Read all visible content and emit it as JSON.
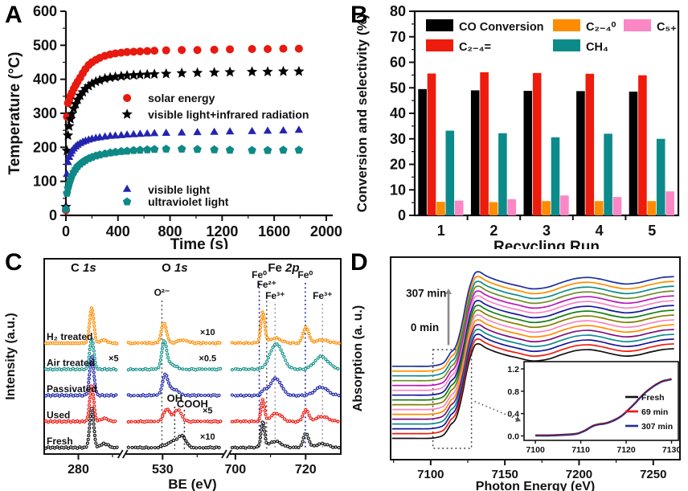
{
  "figure": {
    "background": "#ffffff",
    "panel_labels": [
      "A",
      "B",
      "C",
      "D"
    ]
  },
  "chart_data": [
    {
      "panel": "A",
      "type": "scatter",
      "xlabel": "Time (s)",
      "ylabel": "Temperature (°C)",
      "xlim": [
        0,
        2050
      ],
      "ylim": [
        0,
        600
      ],
      "xticks": [
        0,
        400,
        800,
        1200,
        1600,
        2000
      ],
      "xminor": 200,
      "yticks": [
        0,
        100,
        200,
        300,
        400,
        500,
        600
      ],
      "yminor": 50,
      "x": [
        0,
        8,
        16,
        25,
        35,
        45,
        60,
        75,
        90,
        110,
        130,
        150,
        175,
        200,
        230,
        260,
        300,
        340,
        380,
        425,
        470,
        520,
        570,
        625,
        680,
        770,
        890,
        1010,
        1140,
        1260,
        1430,
        1550,
        1670,
        1790
      ],
      "series": [
        {
          "name": "solar energy",
          "marker": "circle",
          "color": "#e8190f",
          "values": [
            15,
            290,
            330,
            338,
            350,
            360,
            372,
            383,
            393,
            405,
            418,
            430,
            442,
            450,
            457,
            463,
            469,
            473,
            476,
            478,
            480,
            481,
            482,
            483,
            484,
            485,
            486,
            486,
            487,
            488,
            489,
            489,
            490,
            490
          ]
        },
        {
          "name": "visible light+infrared radiation",
          "marker": "star",
          "color": "#000000",
          "values": [
            25,
            190,
            235,
            262,
            283,
            298,
            314,
            327,
            340,
            352,
            362,
            372,
            380,
            387,
            393,
            397,
            402,
            405,
            407,
            409,
            411,
            412,
            413,
            414,
            415,
            416,
            418,
            419,
            420,
            421,
            422,
            422,
            423,
            423
          ]
        },
        {
          "name": "visible light",
          "marker": "triangle",
          "color": "#2424b0",
          "values": [
            20,
            120,
            155,
            170,
            180,
            188,
            195,
            201,
            206,
            211,
            215,
            218,
            221,
            224,
            226,
            228,
            230,
            232,
            233,
            234,
            236,
            237,
            238,
            239,
            240,
            241,
            242,
            243,
            244,
            245,
            246,
            247,
            248,
            250
          ]
        },
        {
          "name": "ultraviolet light",
          "marker": "pentagon",
          "color": "#0e8a86",
          "values": [
            18,
            65,
            80,
            93,
            105,
            116,
            127,
            136,
            144,
            151,
            157,
            162,
            167,
            171,
            175,
            178,
            181,
            184,
            186,
            188,
            189,
            191,
            192,
            193,
            194,
            195,
            195,
            194,
            193,
            192,
            191,
            191,
            192,
            192
          ]
        }
      ],
      "legend_rows": [
        {
          "series": 0,
          "mx": 470,
          "my": 345
        },
        {
          "series": 1,
          "mx": 470,
          "my": 297
        },
        {
          "series": 2,
          "mx": 470,
          "my": 76
        },
        {
          "series": 3,
          "mx": 470,
          "my": 40
        }
      ]
    },
    {
      "panel": "B",
      "type": "bar",
      "xlabel": "Recycling Run",
      "ylabel": "Conversion and selectivity (%)",
      "categories": [
        "1",
        "2",
        "3",
        "4",
        "5"
      ],
      "ylim": [
        0,
        80
      ],
      "yticks": [
        0,
        10,
        20,
        30,
        40,
        50,
        60,
        70,
        80
      ],
      "yminor": 5,
      "series": [
        {
          "name": "CO Conversion",
          "color": "#000000",
          "values": [
            49.5,
            49.0,
            48.8,
            48.7,
            48.5
          ]
        },
        {
          "name": "C₂₋₄=",
          "color": "#ee1c0c",
          "values": [
            55.6,
            56.1,
            55.8,
            55.5,
            54.9
          ]
        },
        {
          "name": "C₂₋₄⁰",
          "color": "#ff8c00",
          "values": [
            5.3,
            5.2,
            5.6,
            5.6,
            5.6
          ]
        },
        {
          "name": "CH₄",
          "color": "#0d8b8b",
          "values": [
            33.2,
            32.2,
            30.6,
            32.0,
            30.0
          ]
        },
        {
          "name": "C₅₊",
          "color": "#fb87c6",
          "values": [
            5.8,
            6.3,
            7.8,
            7.2,
            9.4
          ]
        }
      ]
    },
    {
      "panel": "C",
      "type": "line",
      "xlabel": "BE (eV)",
      "ylabel": "Intensity (a.u.)",
      "regions": [
        {
          "key": "C1s",
          "title_el": "C",
          "title_orb": "1s",
          "x0": 270.0,
          "x1": 293.0,
          "wfrac": 0.265,
          "ticks": [
            280
          ],
          "minor": [
            290
          ]
        },
        {
          "key": "O1s",
          "title_el": "O",
          "title_orb": "1s",
          "x0": 518.5,
          "x1": 548.5,
          "wfrac": 0.35,
          "ticks": [
            530
          ],
          "minor": [
            540
          ]
        },
        {
          "key": "Fe2p",
          "title_el": "Fe",
          "title_orb": "2p",
          "x0": 697.5,
          "x1": 730.0,
          "wfrac": 0.385,
          "ticks": [
            700,
            720
          ],
          "minor": [
            710
          ]
        }
      ],
      "traces": [
        {
          "name": "Fresh",
          "color": "#111111",
          "peaks": {
            "C1s": [
              [
                284.8,
                0.9,
                50
              ],
              [
                288.9,
                1.6,
                5
              ]
            ],
            "O1s": [
              [
                532.8,
                1.8,
                8
              ],
              [
                535.8,
                1.7,
                15
              ],
              [
                529.9,
                1.0,
                3
              ]
            ],
            "Fe2p": [
              [
                706.8,
                0.75,
                32
              ],
              [
                710.6,
                2.6,
                8
              ],
              [
                719.9,
                1.1,
                18
              ],
              [
                724.8,
                2.6,
                5
              ]
            ]
          },
          "mults": {
            "O1s": "×10"
          }
        },
        {
          "name": "Used",
          "color": "#f2130c",
          "peaks": {
            "C1s": [
              [
                284.8,
                0.9,
                46
              ],
              [
                288.9,
                1.6,
                4
              ]
            ],
            "O1s": [
              [
                531.2,
                1.4,
                14
              ],
              [
                534.5,
                1.6,
                15
              ],
              [
                529.9,
                0.9,
                4
              ]
            ],
            "Fe2p": [
              [
                706.8,
                0.75,
                27
              ],
              [
                710.9,
                2.3,
                10
              ],
              [
                719.9,
                1.1,
                15
              ],
              [
                724.8,
                2.6,
                6
              ]
            ]
          },
          "mults": {
            "O1s": "×5"
          }
        },
        {
          "name": "Passivated",
          "color": "#1c24a8",
          "peaks": {
            "C1s": [
              [
                284.8,
                0.95,
                48
              ]
            ],
            "O1s": [
              [
                530.4,
                1.2,
                24
              ],
              [
                532.9,
                2.4,
                8
              ]
            ],
            "Fe2p": [
              [
                710.7,
                2.4,
                21
              ],
              [
                707.0,
                0.9,
                6
              ],
              [
                724.5,
                2.7,
                10
              ]
            ]
          },
          "mults": {}
        },
        {
          "name": "Air treated",
          "color": "#16938a",
          "peaks": {
            "C1s": [
              [
                284.8,
                0.95,
                38
              ]
            ],
            "O1s": [
              [
                530.1,
                1.1,
                34
              ],
              [
                532.4,
                2.2,
                6
              ]
            ],
            "Fe2p": [
              [
                710.9,
                2.7,
                32
              ],
              [
                724.6,
                2.9,
                16
              ]
            ]
          },
          "mults": {
            "C1s": "×5",
            "O1s": "×0.5"
          }
        },
        {
          "name": "H₂ treated",
          "color": "#ff8c00",
          "peaks": {
            "C1s": [
              [
                284.8,
                0.95,
                44
              ],
              [
                288.7,
                1.5,
                4
              ]
            ],
            "O1s": [
              [
                530.0,
                1.15,
                26
              ],
              [
                536.2,
                2.4,
                4
              ]
            ],
            "Fe2p": [
              [
                706.8,
                0.85,
                38
              ],
              [
                710.6,
                2.6,
                6
              ],
              [
                719.9,
                1.2,
                20
              ],
              [
                724.8,
                2.6,
                4
              ]
            ]
          },
          "mults": {
            "O1s": "×10"
          }
        }
      ],
      "guides": [
        {
          "region": "O1s",
          "x": 529.8,
          "color": "#555555",
          "label": "O²⁻",
          "label_color": "#333333",
          "ytop": 64,
          "label_y": 58
        },
        {
          "region": "O1s",
          "x": 533.5,
          "color": "#333333",
          "label": "OH",
          "label_color": "#111111",
          "ytop": 196,
          "label_y": 190
        },
        {
          "region": "O1s",
          "x": 536.3,
          "color": "#333333",
          "label": "COOH",
          "label_color": "#111111",
          "ytop": 200,
          "label_y": 197
        },
        {
          "region": "Fe2p",
          "x": 706.8,
          "color": "#1c24a8",
          "label": "Fe⁰",
          "label_color": "#1c24a8",
          "ytop": 42,
          "label_y": 36
        },
        {
          "region": "Fe2p",
          "x": 708.9,
          "color": "#555555",
          "label": "Fe²⁺",
          "label_color": "#444444",
          "ytop": 54,
          "label_y": 48
        },
        {
          "region": "Fe2p",
          "x": 711.3,
          "color": "#9a9a9a",
          "label": "Fe³⁺",
          "label_color": "#999999",
          "ytop": 68,
          "label_y": 62
        },
        {
          "region": "Fe2p",
          "x": 719.9,
          "color": "#1c24a8",
          "label": "Fe⁰",
          "label_color": "#1c24a8",
          "ytop": 42,
          "label_y": 36
        },
        {
          "region": "Fe2p",
          "x": 724.8,
          "color": "#9a9a9a",
          "label": "Fe³⁺",
          "label_color": "#999999",
          "ytop": 68,
          "label_y": 62
        }
      ]
    },
    {
      "panel": "D",
      "type": "line",
      "xlabel": "Photon Energy (eV)",
      "ylabel": "Absorption (a. u.)",
      "xlim": [
        7073,
        7268
      ],
      "xticks": [
        7100,
        7150,
        7200,
        7250
      ],
      "xminor": 25,
      "ylim": [
        -0.21,
        1.98
      ],
      "n_curves": 16,
      "offset_step": 0.052,
      "colors": [
        "#111111",
        "#ee1c0c",
        "#16169e",
        "#0d8b8b",
        "#7d107d",
        "#ff8c00",
        "#f585bf",
        "#808000",
        "#118011",
        "#16169e",
        "#f585bf",
        "#bb15bb",
        "#6b8e23",
        "#0d8b8b",
        "#ff8c00",
        "#1c2f9e"
      ],
      "base_x": [
        7074,
        7088,
        7098,
        7104,
        7108,
        7110,
        7112,
        7113.5,
        7115,
        7116.5,
        7118,
        7120,
        7122,
        7124,
        7126,
        7128,
        7130,
        7133,
        7137,
        7143,
        7151,
        7159,
        7167,
        7173,
        7180,
        7189,
        7198,
        7207,
        7215,
        7223,
        7231,
        7239,
        7247,
        7256,
        7264
      ],
      "base_y": [
        0.02,
        0.02,
        0.02,
        0.03,
        0.05,
        0.08,
        0.13,
        0.17,
        0.19,
        0.22,
        0.28,
        0.4,
        0.55,
        0.72,
        0.86,
        0.96,
        1.03,
        1.04,
        1.0,
        0.96,
        0.92,
        0.89,
        0.86,
        0.86,
        0.88,
        0.93,
        0.97,
        0.98,
        0.96,
        0.93,
        0.91,
        0.92,
        0.95,
        0.98,
        0.99
      ],
      "labels": {
        "top": "307 min",
        "bottom": "0 min"
      },
      "zoom_box": {
        "x0": 7101.5,
        "x1": 7127.5
      },
      "inset": {
        "xlim": [
          7097.5,
          7131.5
        ],
        "xticks": [
          7100,
          7110,
          7120,
          7130
        ],
        "xminor": 5,
        "ylim": [
          -0.08,
          1.33
        ],
        "yticks": [
          "0.0",
          "0.4",
          "0.8",
          "1.2"
        ],
        "x": [
          7100,
          7103,
          7106,
          7108,
          7109.5,
          7111,
          7112,
          7113,
          7114,
          7115,
          7116,
          7117,
          7118,
          7119,
          7120,
          7121,
          7122,
          7123,
          7124,
          7125,
          7126,
          7127,
          7128,
          7129,
          7130
        ],
        "y": [
          0.01,
          0.01,
          0.02,
          0.03,
          0.05,
          0.1,
          0.15,
          0.19,
          0.21,
          0.22,
          0.24,
          0.27,
          0.31,
          0.36,
          0.43,
          0.51,
          0.59,
          0.68,
          0.76,
          0.83,
          0.89,
          0.94,
          0.98,
          1.0,
          1.02
        ],
        "series": [
          {
            "name": "Fresh",
            "color": "#111111"
          },
          {
            "name": "69 min",
            "color": "#f2130c"
          },
          {
            "name": "307 min",
            "color": "#1c2f9e"
          }
        ]
      }
    }
  ]
}
